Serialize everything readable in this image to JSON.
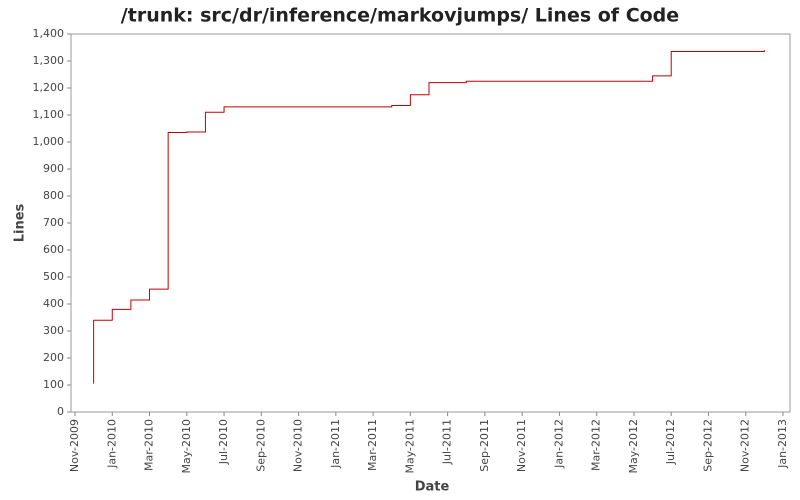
{
  "chart_data": {
    "type": "line",
    "title": "/trunk: src/dr/inference/markovjumps/ Lines of Code",
    "xlabel": "Date",
    "ylabel": "Lines",
    "x": [
      "2009-12",
      "2009-12",
      "2010-01",
      "2010-02",
      "2010-03",
      "2010-03",
      "2010-04",
      "2010-04",
      "2010-05",
      "2010-06",
      "2010-07",
      "2011-04",
      "2011-05",
      "2011-06",
      "2011-08",
      "2012-06",
      "2012-07",
      "2012-12"
    ],
    "series": [
      {
        "name": "Lines",
        "color": "#c00000",
        "values": [
          105,
          340,
          380,
          415,
          450,
          455,
          700,
          1035,
          1037,
          1110,
          1130,
          1135,
          1175,
          1220,
          1225,
          1245,
          1335,
          1340
        ]
      }
    ],
    "step": true,
    "xlim": [
      "2009-11",
      "2013-01"
    ],
    "xticks": [
      {
        "value": "2009-11",
        "label": "Nov-2009"
      },
      {
        "value": "2010-01",
        "label": "Jan-2010"
      },
      {
        "value": "2010-03",
        "label": "Mar-2010"
      },
      {
        "value": "2010-05",
        "label": "May-2010"
      },
      {
        "value": "2010-07",
        "label": "Jul-2010"
      },
      {
        "value": "2010-09",
        "label": "Sep-2010"
      },
      {
        "value": "2010-11",
        "label": "Nov-2010"
      },
      {
        "value": "2011-01",
        "label": "Jan-2011"
      },
      {
        "value": "2011-03",
        "label": "Mar-2011"
      },
      {
        "value": "2011-05",
        "label": "May-2011"
      },
      {
        "value": "2011-07",
        "label": "Jul-2011"
      },
      {
        "value": "2011-09",
        "label": "Sep-2011"
      },
      {
        "value": "2011-11",
        "label": "Nov-2011"
      },
      {
        "value": "2012-01",
        "label": "Jan-2012"
      },
      {
        "value": "2012-03",
        "label": "Mar-2012"
      },
      {
        "value": "2012-05",
        "label": "May-2012"
      },
      {
        "value": "2012-07",
        "label": "Jul-2012"
      },
      {
        "value": "2012-09",
        "label": "Sep-2012"
      },
      {
        "value": "2012-11",
        "label": "Nov-2012"
      },
      {
        "value": "2013-01",
        "label": "Jan-2013"
      }
    ],
    "ylim": [
      0,
      1400
    ],
    "yticks": [
      0,
      100,
      200,
      300,
      400,
      500,
      600,
      700,
      800,
      900,
      {
        "value": 1000,
        "label": "1,000"
      },
      {
        "value": 1100,
        "label": "1,100"
      },
      {
        "value": 1200,
        "label": "1,200"
      },
      {
        "value": 1300,
        "label": "1,300"
      },
      {
        "value": 1400,
        "label": "1,400"
      }
    ],
    "grid": false
  }
}
